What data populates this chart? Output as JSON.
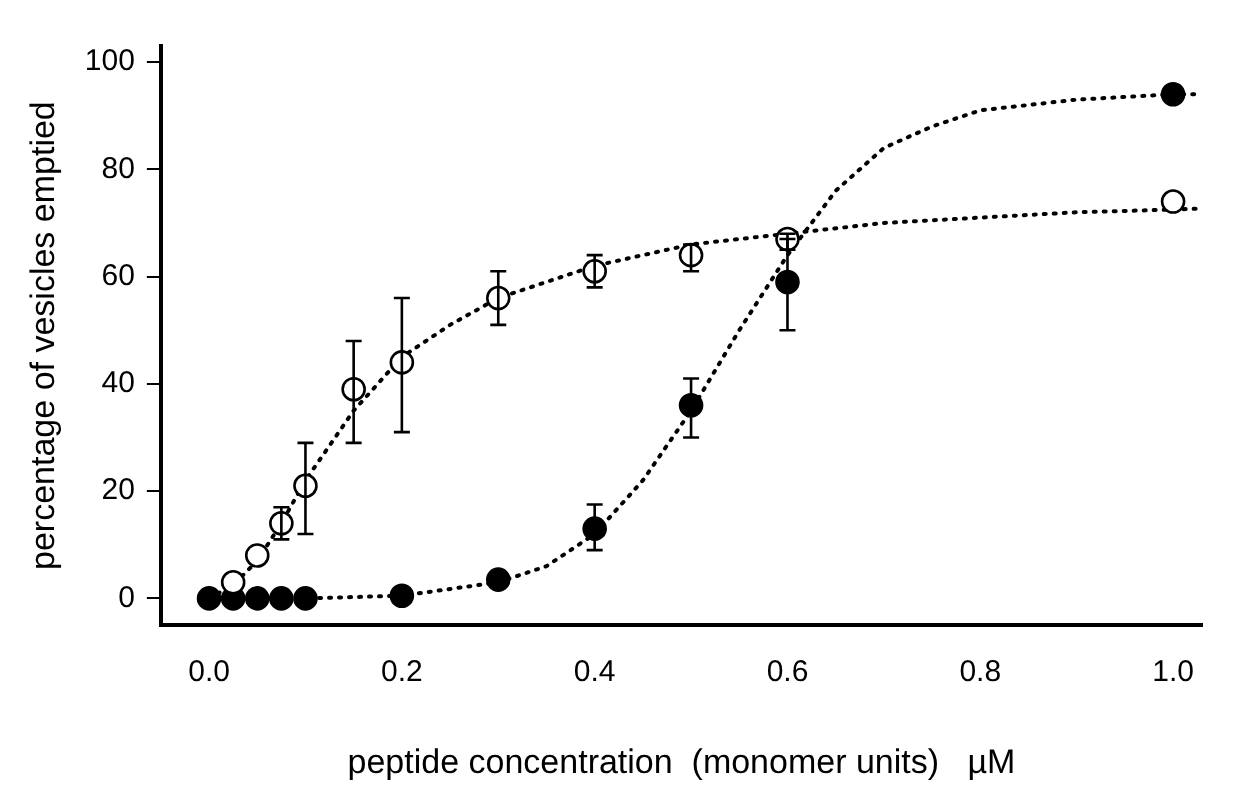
{
  "chart_data": {
    "type": "scatter",
    "xlabel": "peptide concentration  (monomer units)   µM",
    "ylabel": "percentage of vesicles emptied",
    "xlim": [
      -0.05,
      1.03
    ],
    "ylim": [
      -5,
      103
    ],
    "xticks": [
      {
        "value": 0,
        "label": "0.0"
      },
      0.2,
      0.4,
      0.6,
      0.8,
      {
        "value": 1,
        "label": "1.0"
      }
    ],
    "yticks": [
      0,
      20,
      40,
      60,
      80,
      100
    ],
    "grid": false,
    "legend": false,
    "marker": "circle",
    "series": [
      {
        "type": "line",
        "marker": "none",
        "line_style": "dotted",
        "color": "#000000",
        "x": [
          0,
          0.025,
          0.05,
          0.075,
          0.1,
          0.15,
          0.2,
          0.25,
          0.3,
          0.35,
          0.4,
          0.5,
          0.6,
          0.7,
          0.8,
          0.9,
          1.0,
          1.03
        ],
        "values": [
          0,
          2.5,
          7,
          14,
          22,
          35,
          45,
          51,
          56,
          59,
          62,
          66,
          68,
          70,
          71,
          72,
          72.5,
          72.7
        ]
      },
      {
        "type": "line",
        "marker": "none",
        "line_style": "dotted",
        "color": "#000000",
        "x": [
          0,
          0.1,
          0.2,
          0.3,
          0.35,
          0.4,
          0.45,
          0.5,
          0.55,
          0.6,
          0.65,
          0.7,
          0.75,
          0.8,
          0.9,
          1.0,
          1.03
        ],
        "values": [
          0,
          0,
          0.5,
          3,
          6,
          12,
          22,
          35,
          50,
          64,
          76,
          84,
          88,
          91,
          93,
          94,
          94
        ]
      },
      {
        "color": "#ffffff",
        "x": [
          0.025,
          0.05,
          0.075,
          0.1,
          0.15,
          0.2,
          0.3,
          0.4,
          0.5,
          0.6,
          1.0
        ],
        "values": [
          3,
          8,
          14,
          21,
          39,
          44,
          56,
          61,
          64,
          67,
          74
        ],
        "errors": [
          null,
          null,
          [
            11,
            17
          ],
          [
            12,
            29
          ],
          [
            29,
            48
          ],
          [
            31,
            56
          ],
          [
            51,
            61
          ],
          [
            58,
            64
          ],
          [
            61,
            66
          ],
          [
            65,
            68
          ],
          null
        ]
      },
      {
        "color": "#000000",
        "x": [
          0,
          0.025,
          0.05,
          0.075,
          0.1,
          0.2,
          0.3,
          0.4,
          0.5,
          0.6,
          1.0
        ],
        "values": [
          0,
          0,
          0,
          0,
          0,
          0.5,
          3.5,
          13,
          36,
          59,
          94
        ],
        "errors": [
          null,
          null,
          null,
          null,
          null,
          null,
          null,
          [
            9,
            17.5
          ],
          [
            30,
            41
          ],
          [
            50,
            67
          ],
          null
        ]
      }
    ]
  }
}
